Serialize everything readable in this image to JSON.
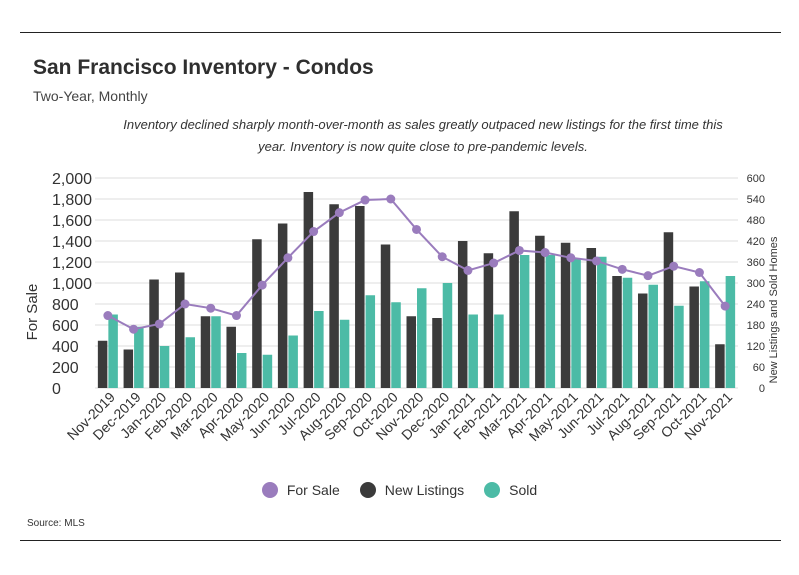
{
  "header": {
    "title": "San Francisco Inventory - Condos",
    "subtitle": "Two-Year, Monthly",
    "note": "Inventory declined sharply month-over-month as sales greatly outpaced new listings for the first time this year. Inventory is now quite close to pre-pandemic levels."
  },
  "source": "Source:  MLS",
  "colors": {
    "for_sale": "#9a7cbd",
    "new_listings": "#3b3b3b",
    "sold": "#4cbba6"
  },
  "chart_data": {
    "type": "bar",
    "title": "San Francisco Inventory - Condos",
    "subtitle": "Two-Year, Monthly",
    "categories": [
      "Nov-2019",
      "Dec-2019",
      "Jan-2020",
      "Feb-2020",
      "Mar-2020",
      "Apr-2020",
      "May-2020",
      "Jun-2020",
      "Jul-2020",
      "Aug-2020",
      "Sep-2020",
      "Oct-2020",
      "Nov-2020",
      "Dec-2020",
      "Jan-2021",
      "Feb-2021",
      "Mar-2021",
      "Apr-2021",
      "May-2021",
      "Jun-2021",
      "Jul-2021",
      "Aug-2021",
      "Sep-2021",
      "Oct-2021",
      "Nov-2021"
    ],
    "ylabel_left": "For Sale",
    "ylabel_right": "New Listings and Sold Homes",
    "ylim_left": [
      0,
      2000
    ],
    "ylim_right": [
      0,
      600
    ],
    "yticks_left": [
      "0",
      "200",
      "400",
      "600",
      "800",
      "1,000",
      "1,200",
      "1,400",
      "1,600",
      "1,800",
      "2,000"
    ],
    "yticks_right": [
      "0",
      "60",
      "120",
      "180",
      "240",
      "300",
      "360",
      "420",
      "480",
      "540",
      "600"
    ],
    "series": [
      {
        "name": "New Listings",
        "type": "bar",
        "axis": "right",
        "values": [
          135,
          110,
          310,
          330,
          205,
          175,
          425,
          470,
          560,
          525,
          520,
          410,
          205,
          200,
          420,
          385,
          505,
          435,
          415,
          400,
          320,
          270,
          445,
          290,
          125
        ]
      },
      {
        "name": "Sold",
        "type": "bar",
        "axis": "right",
        "values": [
          210,
          175,
          120,
          145,
          205,
          100,
          95,
          150,
          220,
          195,
          265,
          245,
          285,
          300,
          210,
          210,
          380,
          380,
          370,
          375,
          315,
          295,
          235,
          305,
          320
        ]
      },
      {
        "name": "For Sale",
        "type": "line",
        "axis": "left",
        "values": [
          690,
          560,
          610,
          800,
          760,
          690,
          980,
          1240,
          1490,
          1670,
          1790,
          1800,
          1510,
          1250,
          1120,
          1190,
          1310,
          1290,
          1240,
          1210,
          1130,
          1070,
          1160,
          1100,
          780
        ]
      }
    ],
    "legend": [
      "For Sale",
      "New Listings",
      "Sold"
    ],
    "legend_position": "bottom",
    "grid": true
  }
}
